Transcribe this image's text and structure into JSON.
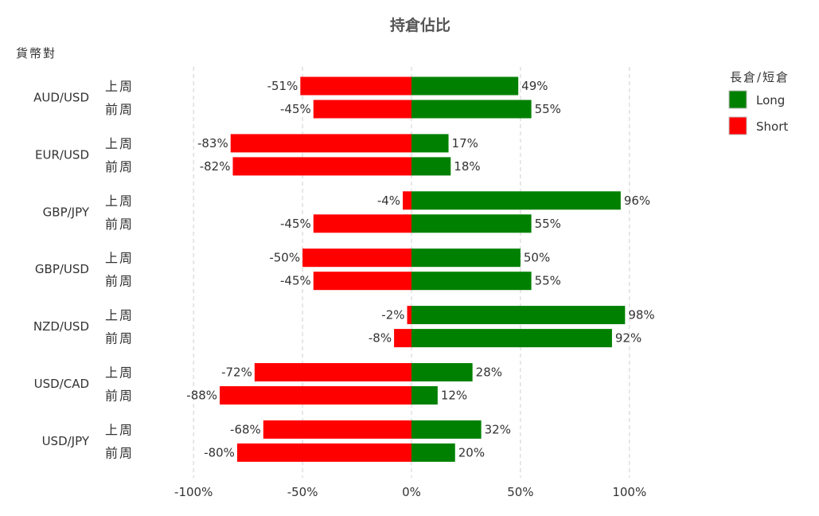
{
  "chart_data": {
    "type": "bar",
    "orientation": "horizontal",
    "stacked": "diverging",
    "title": "持倉佔比",
    "ylabel": "貨幣對",
    "xlim": [
      -100,
      100
    ],
    "xticks": [
      -100,
      -50,
      0,
      50,
      100
    ],
    "xtick_labels": [
      "-100%",
      "-50%",
      "0%",
      "50%",
      "100%"
    ],
    "grid": true,
    "legend": {
      "title": "長倉/短倉",
      "placement": "top-right",
      "entries": [
        {
          "label": "Long",
          "color": "#008000"
        },
        {
          "label": "Short",
          "color": "#ff0000"
        }
      ]
    },
    "periods": [
      "上周",
      "前周"
    ],
    "groups": [
      {
        "pair": "AUD/USD",
        "rows": [
          {
            "period": "上周",
            "short": -51,
            "long": 49,
            "short_label": "-51%",
            "long_label": "49%"
          },
          {
            "period": "前周",
            "short": -45,
            "long": 55,
            "short_label": "-45%",
            "long_label": "55%"
          }
        ]
      },
      {
        "pair": "EUR/USD",
        "rows": [
          {
            "period": "上周",
            "short": -83,
            "long": 17,
            "short_label": "-83%",
            "long_label": "17%"
          },
          {
            "period": "前周",
            "short": -82,
            "long": 18,
            "short_label": "-82%",
            "long_label": "18%"
          }
        ]
      },
      {
        "pair": "GBP/JPY",
        "rows": [
          {
            "period": "上周",
            "short": -4,
            "long": 96,
            "short_label": "-4%",
            "long_label": "96%"
          },
          {
            "period": "前周",
            "short": -45,
            "long": 55,
            "short_label": "-45%",
            "long_label": "55%"
          }
        ]
      },
      {
        "pair": "GBP/USD",
        "rows": [
          {
            "period": "上周",
            "short": -50,
            "long": 50,
            "short_label": "-50%",
            "long_label": "50%"
          },
          {
            "period": "前周",
            "short": -45,
            "long": 55,
            "short_label": "-45%",
            "long_label": "55%"
          }
        ]
      },
      {
        "pair": "NZD/USD",
        "rows": [
          {
            "period": "上周",
            "short": -2,
            "long": 98,
            "short_label": "-2%",
            "long_label": "98%"
          },
          {
            "period": "前周",
            "short": -8,
            "long": 92,
            "short_label": "-8%",
            "long_label": "92%"
          }
        ]
      },
      {
        "pair": "USD/CAD",
        "rows": [
          {
            "period": "上周",
            "short": -72,
            "long": 28,
            "short_label": "-72%",
            "long_label": "28%"
          },
          {
            "period": "前周",
            "short": -88,
            "long": 12,
            "short_label": "-88%",
            "long_label": "12%"
          }
        ]
      },
      {
        "pair": "USD/JPY",
        "rows": [
          {
            "period": "上周",
            "short": -68,
            "long": 32,
            "short_label": "-68%",
            "long_label": "32%"
          },
          {
            "period": "前周",
            "short": -80,
            "long": 20,
            "short_label": "-80%",
            "long_label": "20%"
          }
        ]
      }
    ]
  }
}
